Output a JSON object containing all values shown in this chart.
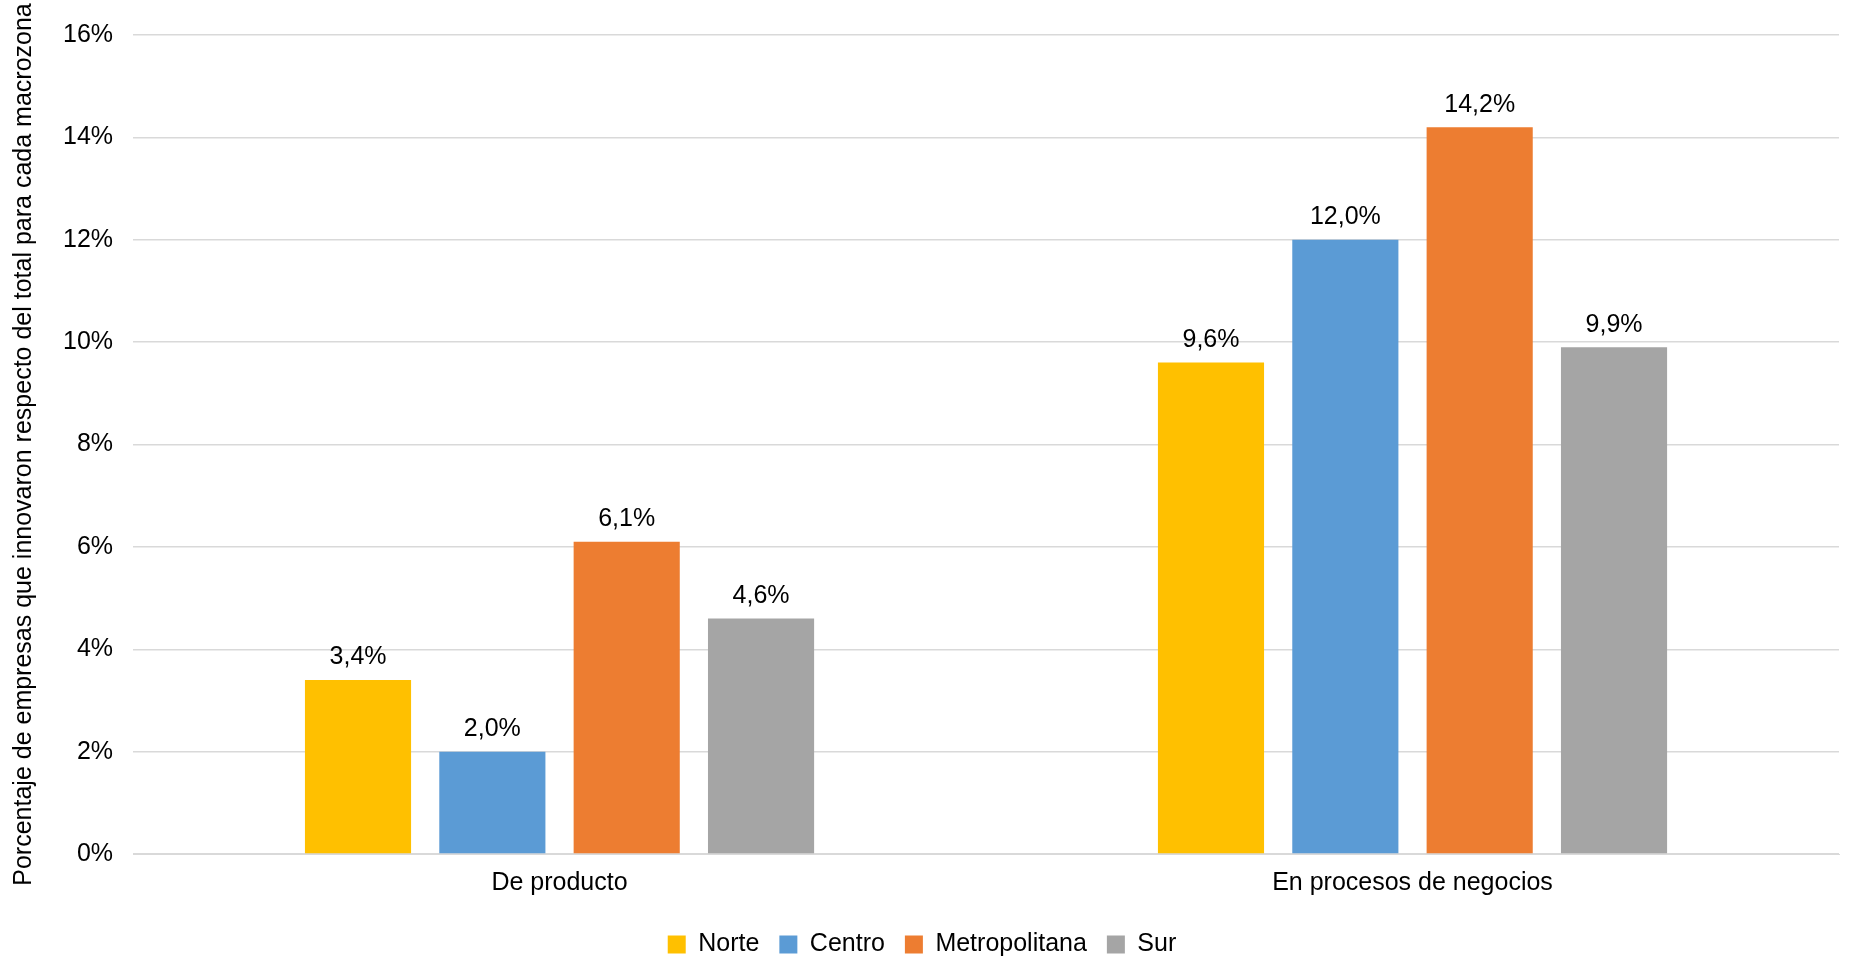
{
  "chart_data": {
    "type": "bar",
    "ylabel": "Porcentaje de empresas que innovaron respecto del total para cada macrozona",
    "categories": [
      "De producto",
      "En procesos de negocios"
    ],
    "series": [
      {
        "name": "Norte",
        "color": "#ffc000",
        "values": [
          3.4,
          9.6
        ],
        "value_labels": [
          "3,4%",
          "9,6%"
        ]
      },
      {
        "name": "Centro",
        "color": "#5b9bd5",
        "values": [
          2.0,
          12.0
        ],
        "value_labels": [
          "2,0%",
          "12,0%"
        ]
      },
      {
        "name": "Metropolitana",
        "color": "#ed7d31",
        "values": [
          6.1,
          14.2
        ],
        "value_labels": [
          "6,1%",
          "14,2%"
        ]
      },
      {
        "name": "Sur",
        "color": "#a5a5a5",
        "values": [
          4.6,
          9.9
        ],
        "value_labels": [
          "4,6%",
          "9,9%"
        ]
      }
    ],
    "ylim": [
      0,
      16
    ],
    "yticks": [
      {
        "value": 0,
        "label": "0%"
      },
      {
        "value": 2,
        "label": "2%"
      },
      {
        "value": 4,
        "label": "4%"
      },
      {
        "value": 6,
        "label": "6%"
      },
      {
        "value": 8,
        "label": "8%"
      },
      {
        "value": 10,
        "label": "10%"
      },
      {
        "value": 12,
        "label": "12%"
      },
      {
        "value": 14,
        "label": "14%"
      },
      {
        "value": 16,
        "label": "16%"
      }
    ],
    "grid": "y",
    "legend": "bottom"
  }
}
